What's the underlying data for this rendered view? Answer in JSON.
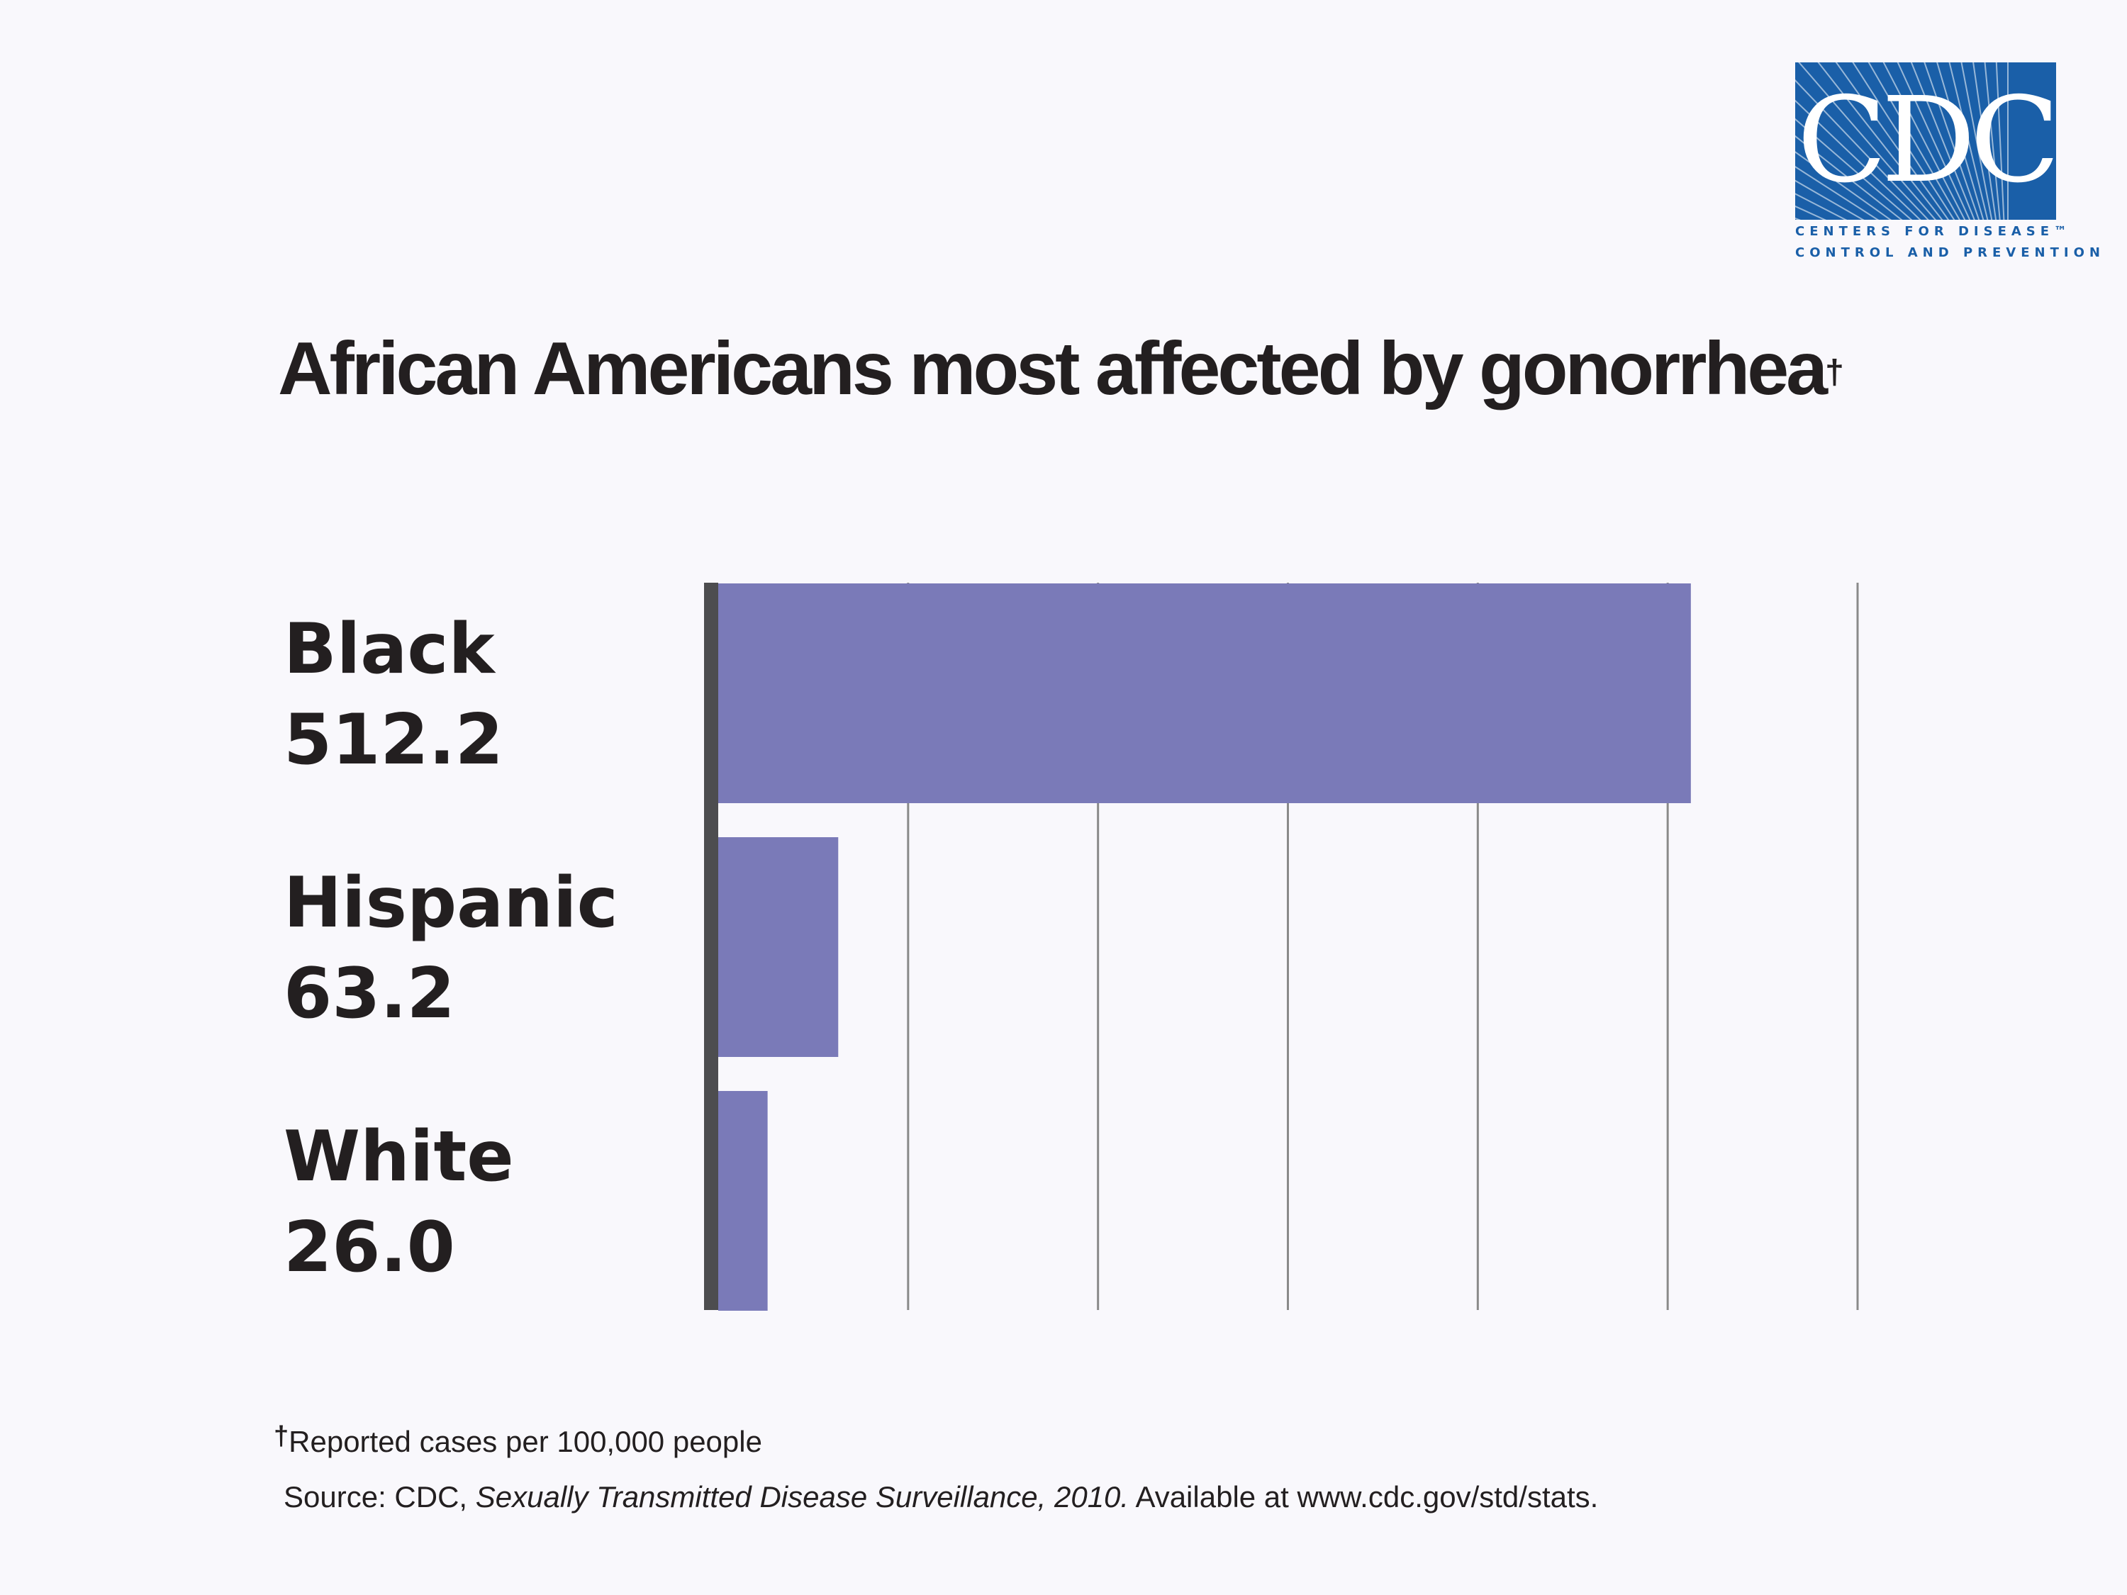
{
  "logo": {
    "letters": "CDC",
    "line1": "CENTERS FOR DISEASE™",
    "line2": "CONTROL AND PREVENTION",
    "color": "#1a5fa8"
  },
  "chart_data": {
    "type": "bar",
    "orientation": "horizontal",
    "title": "African Americans most affected by gonorrhea",
    "title_marker": "†",
    "categories": [
      "Black",
      "Hispanic",
      "White"
    ],
    "values": [
      512.2,
      63.2,
      26.0
    ],
    "value_labels": [
      "512.2",
      "63.2",
      "26.0"
    ],
    "xlim": [
      0,
      600
    ],
    "x_gridline_step": 100,
    "grid": true,
    "legend": "none",
    "bar_color": "#7a7ab8",
    "axis_color": "#4d4d4f",
    "gridline_color": "#8a8a8a"
  },
  "footnote": {
    "marker": "†",
    "text": "Reported cases per 100,000 people"
  },
  "source": {
    "prefix": "Source:  CDC, ",
    "publication": "Sexually Transmitted Disease Surveillance, 2010.",
    "suffix": "  Available at www.cdc.gov/std/stats."
  }
}
